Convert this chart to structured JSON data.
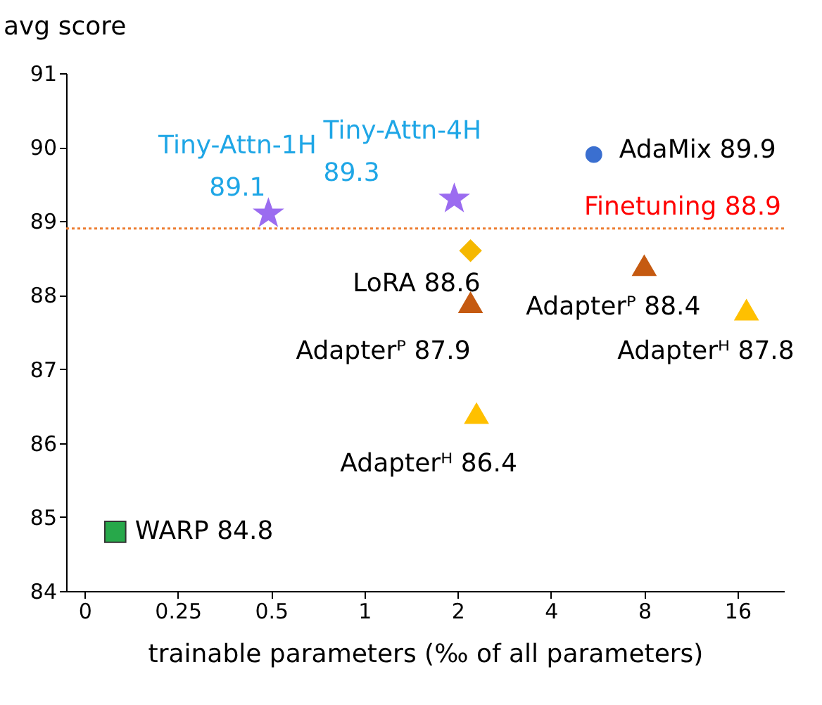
{
  "chart_data": {
    "type": "scatter",
    "xlabel": "trainable parameters (‰ of all parameters)",
    "ylabel": "avg score",
    "xlim": [
      0.109,
      22.6
    ],
    "ylim": [
      84,
      91
    ],
    "log": "x",
    "xticks": [
      {
        "value": 0.125,
        "label": "0"
      },
      0.25,
      0.5,
      1,
      2,
      4,
      8,
      16
    ],
    "yticks": [
      84,
      85,
      86,
      87,
      88,
      89,
      90,
      91
    ],
    "grid": false,
    "legend": false,
    "series": [
      {
        "color": "#27a84a",
        "marker": "square",
        "x": [
          0.157
        ],
        "values": [
          84.8
        ]
      },
      {
        "color": "#9b6cf0",
        "marker": "star",
        "x": [
          0.49,
          1.95
        ],
        "values": [
          89.1,
          89.3
        ]
      },
      {
        "color": "#3a6fd0",
        "marker": "circle",
        "x": [
          5.5
        ],
        "values": [
          89.9
        ]
      },
      {
        "color": "#f5b800",
        "marker": "diamond",
        "x": [
          2.2
        ],
        "values": [
          88.6
        ]
      },
      {
        "color": "#c55a11",
        "marker": "triangle",
        "x": [
          2.2,
          8.0
        ],
        "values": [
          87.9,
          88.4
        ]
      },
      {
        "color": "#ffc000",
        "marker": "triangle",
        "x": [
          2.3,
          17.1
        ],
        "values": [
          86.4,
          87.8
        ]
      }
    ],
    "ref_lines": [
      {
        "axis": "y",
        "value": 88.9,
        "label": "Finetuning 88.9",
        "color": "#ed7d31",
        "line_style": "dotted"
      }
    ],
    "annotations": [
      {
        "text": "WARP 84.8",
        "x": 0.157,
        "y": 84.8
      },
      {
        "text": "Tiny-Attn-1H\n89.1",
        "x": 0.49,
        "y": 89.1
      },
      {
        "text": "Tiny-Attn-4H\n89.3",
        "x": 1.95,
        "y": 89.3
      },
      {
        "text": "AdaMix 89.9",
        "x": 5.5,
        "y": 89.9
      },
      {
        "text": "LoRA 88.6",
        "x": 2.2,
        "y": 88.6
      },
      {
        "text": "Adapterᴾ 87.9",
        "x": 2.2,
        "y": 87.9
      },
      {
        "text": "Adapterᴾ 88.4",
        "x": 8.0,
        "y": 88.4
      },
      {
        "text": "Adapterᴴ 86.4",
        "x": 2.3,
        "y": 86.4
      },
      {
        "text": "Adapterᴴ 87.8",
        "x": 17.1,
        "y": 87.8
      }
    ]
  }
}
